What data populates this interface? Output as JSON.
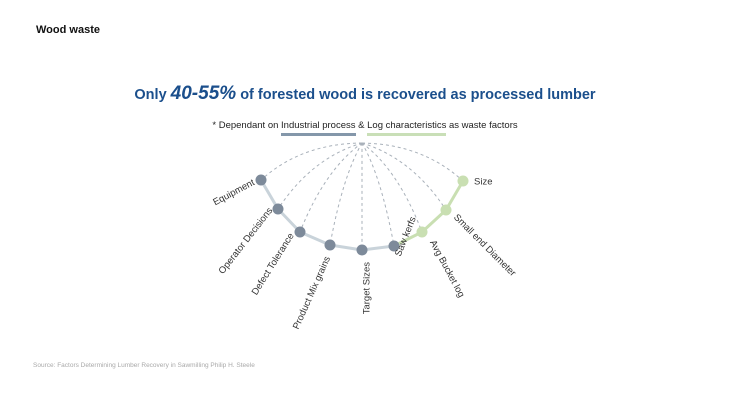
{
  "slide_title": "Wood waste",
  "headline": {
    "prefix": "Only ",
    "highlight": "40-55%",
    "suffix": " of forested wood is recovered as processed lumber"
  },
  "subtitle": {
    "prefix": "* Dependant on ",
    "group_a": "Industrial process",
    "joiner": " & ",
    "group_b": "Log characteristics",
    "suffix": " as waste factors"
  },
  "factors": [
    {
      "label": "Equipment",
      "group": "industrial"
    },
    {
      "label": "Operator Decisions",
      "group": "industrial"
    },
    {
      "label": "Defect Tolerance",
      "group": "industrial"
    },
    {
      "label": "Product Mix grains",
      "group": "industrial"
    },
    {
      "label": "Target Sizes",
      "group": "industrial"
    },
    {
      "label": "Saw kerfs",
      "group": "industrial"
    },
    {
      "label": "Avg Bucket log",
      "group": "log"
    },
    {
      "label": "Small end Diameter",
      "group": "log"
    },
    {
      "label": "Size",
      "group": "log"
    }
  ],
  "colors": {
    "industrial": "#7d8a9a",
    "log": "#c9dfb2",
    "arc": "#c9d3da",
    "dashed": "#a9b1ba",
    "headline": "#1b4f8c"
  },
  "source": "Source: Factors Determining Lumber Recovery in Sawmilling Philip H. Steele"
}
